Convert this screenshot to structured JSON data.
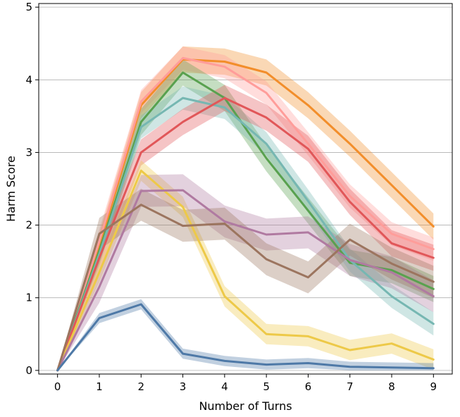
{
  "chart_data": {
    "type": "line",
    "title": "",
    "xlabel": "Number of Turns",
    "ylabel": "Harm Score",
    "xlim": [
      -0.45,
      9.45
    ],
    "ylim": [
      -0.05,
      5.05
    ],
    "x": [
      0,
      1,
      2,
      3,
      4,
      5,
      6,
      7,
      8,
      9
    ],
    "xticks": [
      "0",
      "1",
      "2",
      "3",
      "4",
      "5",
      "6",
      "7",
      "8",
      "9"
    ],
    "yticks": [
      0,
      1,
      2,
      3,
      4,
      5
    ],
    "ytick_labels": [
      "0",
      "1",
      "2",
      "3",
      "4",
      "5"
    ],
    "grid": "horizontal",
    "legend": "none",
    "series": [
      {
        "color": "#f28e2b",
        "values": [
          0,
          1.7,
          3.65,
          4.28,
          4.25,
          4.1,
          3.65,
          3.12,
          2.55,
          1.98
        ],
        "band": 0.18
      },
      {
        "color": "#ff9d9a",
        "values": [
          0,
          1.78,
          3.7,
          4.3,
          4.18,
          3.82,
          3.12,
          2.4,
          1.88,
          1.67
        ],
        "band": 0.16
      },
      {
        "color": "#59a14f",
        "values": [
          0,
          1.65,
          3.42,
          4.1,
          3.75,
          2.92,
          2.2,
          1.48,
          1.38,
          1.12
        ],
        "band": 0.18
      },
      {
        "color": "#76b7b2",
        "values": [
          0,
          1.6,
          3.35,
          3.75,
          3.62,
          3.12,
          2.33,
          1.52,
          1.02,
          0.64
        ],
        "band": 0.16
      },
      {
        "color": "#e15759",
        "values": [
          0,
          1.55,
          3.0,
          3.42,
          3.75,
          3.48,
          3.05,
          2.32,
          1.75,
          1.55
        ],
        "band": 0.18
      },
      {
        "color": "#edc948",
        "values": [
          0,
          1.35,
          2.75,
          2.25,
          1.02,
          0.5,
          0.47,
          0.28,
          0.37,
          0.15
        ],
        "band": 0.14
      },
      {
        "color": "#b07aa1",
        "values": [
          0,
          1.15,
          2.47,
          2.48,
          2.05,
          1.87,
          1.9,
          1.52,
          1.35,
          1.02
        ],
        "band": 0.22
      },
      {
        "color": "#9c755f",
        "values": [
          0,
          1.88,
          2.28,
          1.99,
          2.02,
          1.53,
          1.28,
          1.8,
          1.47,
          1.22
        ],
        "band": 0.22
      },
      {
        "color": "#4e79a7",
        "values": [
          0,
          0.72,
          0.91,
          0.23,
          0.13,
          0.08,
          0.1,
          0.05,
          0.04,
          0.03
        ],
        "band": 0.07
      }
    ]
  }
}
